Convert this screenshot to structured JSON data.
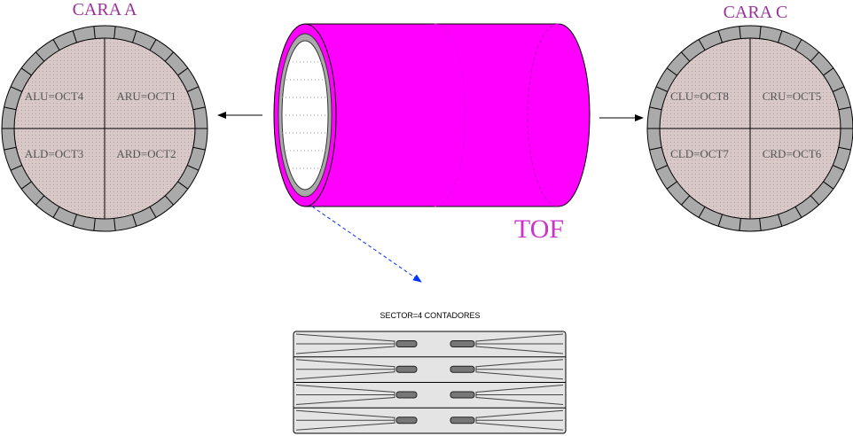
{
  "faces": [
    {
      "title": "CARA A",
      "quadrants": [
        "ALU=OCT4",
        "ARU=OCT1",
        "ALD=OCT3",
        "ARD=OCT2"
      ]
    },
    {
      "title": "CARA C",
      "quadrants": [
        "CLU=OCT8",
        "CRU=OCT5",
        "CLD=OCT7",
        "CRD=OCT6"
      ]
    }
  ],
  "cylinder": {
    "label": "TOF"
  },
  "sector": {
    "label": "SECTOR=4 CONTADORES"
  }
}
